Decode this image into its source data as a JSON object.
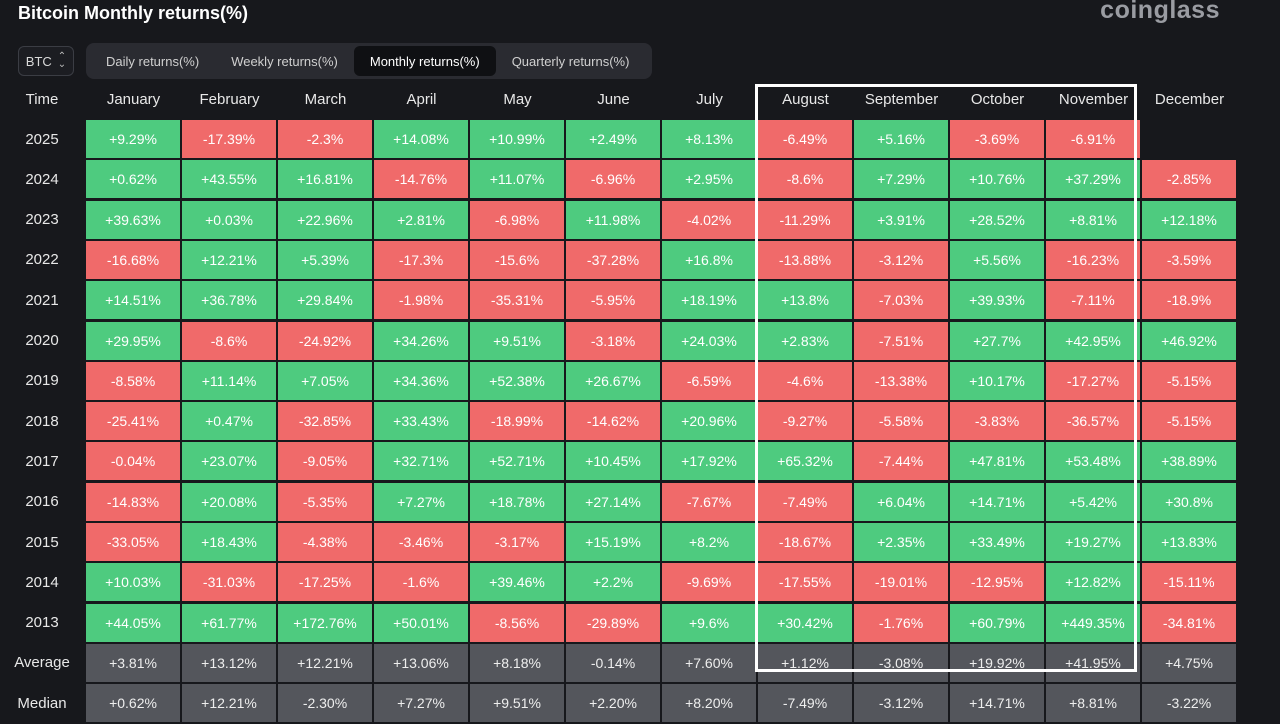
{
  "header": {
    "title": "Bitcoin Monthly returns(%)",
    "logo": "coinglass"
  },
  "symbol_select": {
    "value": "BTC"
  },
  "tabs": [
    {
      "label": "Daily returns(%)",
      "active": false
    },
    {
      "label": "Weekly returns(%)",
      "active": false
    },
    {
      "label": "Monthly returns(%)",
      "active": true
    },
    {
      "label": "Quarterly returns(%)",
      "active": false
    }
  ],
  "table": {
    "time_header": "Time",
    "months": [
      "January",
      "February",
      "March",
      "April",
      "May",
      "June",
      "July",
      "August",
      "September",
      "October",
      "November",
      "December"
    ],
    "rows": [
      {
        "year": "2025",
        "values": [
          "+9.29%",
          "-17.39%",
          "-2.3%",
          "+14.08%",
          "+10.99%",
          "+2.49%",
          "+8.13%",
          "-6.49%",
          "+5.16%",
          "-3.69%",
          "-6.91%",
          ""
        ]
      },
      {
        "year": "2024",
        "values": [
          "+0.62%",
          "+43.55%",
          "+16.81%",
          "-14.76%",
          "+11.07%",
          "-6.96%",
          "+2.95%",
          "-8.6%",
          "+7.29%",
          "+10.76%",
          "+37.29%",
          "-2.85%"
        ]
      },
      {
        "year": "2023",
        "values": [
          "+39.63%",
          "+0.03%",
          "+22.96%",
          "+2.81%",
          "-6.98%",
          "+11.98%",
          "-4.02%",
          "-11.29%",
          "+3.91%",
          "+28.52%",
          "+8.81%",
          "+12.18%"
        ]
      },
      {
        "year": "2022",
        "values": [
          "-16.68%",
          "+12.21%",
          "+5.39%",
          "-17.3%",
          "-15.6%",
          "-37.28%",
          "+16.8%",
          "-13.88%",
          "-3.12%",
          "+5.56%",
          "-16.23%",
          "-3.59%"
        ]
      },
      {
        "year": "2021",
        "values": [
          "+14.51%",
          "+36.78%",
          "+29.84%",
          "-1.98%",
          "-35.31%",
          "-5.95%",
          "+18.19%",
          "+13.8%",
          "-7.03%",
          "+39.93%",
          "-7.11%",
          "-18.9%"
        ]
      },
      {
        "year": "2020",
        "values": [
          "+29.95%",
          "-8.6%",
          "-24.92%",
          "+34.26%",
          "+9.51%",
          "-3.18%",
          "+24.03%",
          "+2.83%",
          "-7.51%",
          "+27.7%",
          "+42.95%",
          "+46.92%"
        ]
      },
      {
        "year": "2019",
        "values": [
          "-8.58%",
          "+11.14%",
          "+7.05%",
          "+34.36%",
          "+52.38%",
          "+26.67%",
          "-6.59%",
          "-4.6%",
          "-13.38%",
          "+10.17%",
          "-17.27%",
          "-5.15%"
        ]
      },
      {
        "year": "2018",
        "values": [
          "-25.41%",
          "+0.47%",
          "-32.85%",
          "+33.43%",
          "-18.99%",
          "-14.62%",
          "+20.96%",
          "-9.27%",
          "-5.58%",
          "-3.83%",
          "-36.57%",
          "-5.15%"
        ]
      },
      {
        "year": "2017",
        "values": [
          "-0.04%",
          "+23.07%",
          "-9.05%",
          "+32.71%",
          "+52.71%",
          "+10.45%",
          "+17.92%",
          "+65.32%",
          "-7.44%",
          "+47.81%",
          "+53.48%",
          "+38.89%"
        ]
      },
      {
        "year": "2016",
        "values": [
          "-14.83%",
          "+20.08%",
          "-5.35%",
          "+7.27%",
          "+18.78%",
          "+27.14%",
          "-7.67%",
          "-7.49%",
          "+6.04%",
          "+14.71%",
          "+5.42%",
          "+30.8%"
        ]
      },
      {
        "year": "2015",
        "values": [
          "-33.05%",
          "+18.43%",
          "-4.38%",
          "-3.46%",
          "-3.17%",
          "+15.19%",
          "+8.2%",
          "-18.67%",
          "+2.35%",
          "+33.49%",
          "+19.27%",
          "+13.83%"
        ]
      },
      {
        "year": "2014",
        "values": [
          "+10.03%",
          "-31.03%",
          "-17.25%",
          "-1.6%",
          "+39.46%",
          "+2.2%",
          "-9.69%",
          "-17.55%",
          "-19.01%",
          "-12.95%",
          "+12.82%",
          "-15.11%"
        ]
      },
      {
        "year": "2013",
        "values": [
          "+44.05%",
          "+61.77%",
          "+172.76%",
          "+50.01%",
          "-8.56%",
          "-29.89%",
          "+9.6%",
          "+30.42%",
          "-1.76%",
          "+60.79%",
          "+449.35%",
          "-34.81%"
        ]
      }
    ],
    "stats": [
      {
        "label": "Average",
        "values": [
          "+3.81%",
          "+13.12%",
          "+12.21%",
          "+13.06%",
          "+8.18%",
          "-0.14%",
          "+7.60%",
          "+1.12%",
          "-3.08%",
          "+19.92%",
          "+41.95%",
          "+4.75%"
        ]
      },
      {
        "label": "Median",
        "values": [
          "+0.62%",
          "+12.21%",
          "-2.30%",
          "+7.27%",
          "+9.51%",
          "+2.20%",
          "+8.20%",
          "-7.49%",
          "-3.12%",
          "+14.71%",
          "+8.81%",
          "-3.22%"
        ]
      }
    ]
  },
  "colors": {
    "positive": "#4ecb7f",
    "negative": "#f06a6a",
    "stat": "#54565c",
    "background": "#17181c",
    "highlight_frame": "#ffffff"
  }
}
